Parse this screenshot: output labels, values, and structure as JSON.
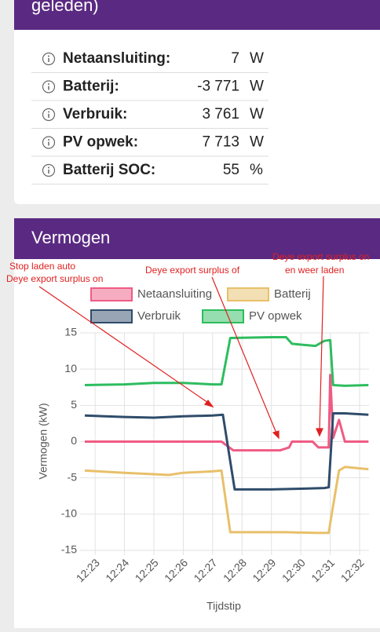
{
  "top_card": {
    "title": "geleden)",
    "rows": [
      [
        "Netaansluiting:",
        "7",
        "W"
      ],
      [
        "Batterij:",
        "-3 771",
        "W"
      ],
      [
        "Verbruik:",
        "3 761",
        "W"
      ],
      [
        "PV opwek:",
        "7 713",
        "W"
      ],
      [
        "Batterij SOC:",
        "55",
        "%"
      ]
    ]
  },
  "chart_data": {
    "type": "line",
    "title": "Vermogen",
    "x_label": "Tijdstip",
    "y_label": "Vermogen (kW)",
    "annotations": [
      "Stop laden auto",
      "Deye export surplus on",
      "Deye export surplus of",
      "Deye export surplus on",
      "en weer laden"
    ],
    "xlim": [
      22.65,
      32.32
    ],
    "ylim": [
      -15,
      15
    ],
    "xticks": [
      {
        "value": 23,
        "label": "12:23"
      },
      {
        "value": 24,
        "label": "12:24"
      },
      {
        "value": 25,
        "label": "12:25"
      },
      {
        "value": 26,
        "label": "12:26"
      },
      {
        "value": 27,
        "label": "12:27"
      },
      {
        "value": 28,
        "label": "12:28"
      },
      {
        "value": 29,
        "label": "12:29"
      },
      {
        "value": 30,
        "label": "12:30"
      },
      {
        "value": 31,
        "label": "12:31"
      },
      {
        "value": 32,
        "label": "12:32"
      }
    ],
    "yticks": [
      -15,
      -10,
      -5,
      0,
      5,
      10,
      15
    ],
    "grid": true,
    "series": [
      {
        "name": "Netaansluiting",
        "color": "#ef5b84",
        "x": [
          22.65,
          24,
          25,
          26,
          27,
          27.3,
          27.7,
          29.3,
          29.6,
          29.7,
          30.4,
          30.6,
          30.95,
          31.0,
          31.1,
          31.3,
          31.5,
          32.3
        ],
        "values": [
          0,
          0,
          0,
          0,
          0,
          0,
          -1.2,
          -1.2,
          -0.8,
          0,
          0,
          -0.8,
          -0.8,
          9.2,
          0.5,
          3,
          0,
          0
        ]
      },
      {
        "name": "Batterij",
        "color": "#e8c06a",
        "x": [
          22.65,
          24,
          25,
          25.5,
          26,
          27,
          27.3,
          27.6,
          29.5,
          30.5,
          30.95,
          31.05,
          31.3,
          31.5,
          32.3
        ],
        "values": [
          -4.0,
          -4.3,
          -4.5,
          -4.6,
          -4.3,
          -4.1,
          -4.0,
          -12.5,
          -12.5,
          -12.6,
          -12.6,
          -10,
          -4,
          -3.5,
          -3.8
        ]
      },
      {
        "name": "Verbruik",
        "color": "#2f4c6b",
        "x": [
          22.65,
          24,
          25,
          26,
          27,
          27.35,
          27.75,
          29,
          30,
          30.8,
          30.95,
          31.1,
          31.5,
          32.3
        ],
        "values": [
          3.6,
          3.4,
          3.3,
          3.5,
          3.6,
          3.7,
          -6.6,
          -6.6,
          -6.5,
          -6.4,
          -6.3,
          3.9,
          3.9,
          3.7
        ]
      },
      {
        "name": "PV opwek",
        "color": "#2dbd5f",
        "x": [
          22.65,
          24,
          25,
          26,
          27,
          27.3,
          27.6,
          29,
          29.5,
          29.7,
          30.5,
          30.8,
          31.0,
          31.1,
          31.5,
          32.3
        ],
        "values": [
          7.8,
          7.9,
          8.1,
          8.1,
          7.9,
          7.9,
          14.3,
          14.4,
          14.4,
          13.5,
          13.2,
          13.9,
          14.0,
          7.8,
          7.7,
          7.8
        ]
      }
    ]
  }
}
